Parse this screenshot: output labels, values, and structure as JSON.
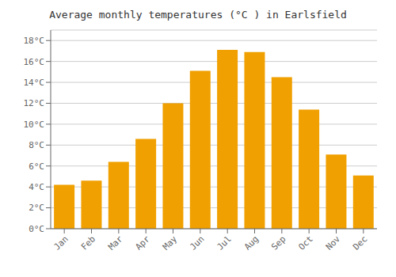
{
  "chart_data": {
    "type": "bar",
    "title": "Average monthly temperatures (°C ) in Earlsfield",
    "categories": [
      "Jan",
      "Feb",
      "Mar",
      "Apr",
      "May",
      "Jun",
      "Jul",
      "Aug",
      "Sep",
      "Oct",
      "Nov",
      "Dec"
    ],
    "values": [
      4.2,
      4.6,
      6.4,
      8.6,
      12.0,
      15.1,
      17.1,
      16.9,
      14.5,
      11.4,
      7.1,
      5.1
    ],
    "color": "#F0A000",
    "ylim": [
      0,
      19
    ],
    "yticks": [
      {
        "value": 0,
        "label": "0°C"
      },
      {
        "value": 2,
        "label": "2°C"
      },
      {
        "value": 4,
        "label": "4°C"
      },
      {
        "value": 6,
        "label": "6°C"
      },
      {
        "value": 8,
        "label": "8°C"
      },
      {
        "value": 10,
        "label": "10°C"
      },
      {
        "value": 12,
        "label": "12°C"
      },
      {
        "value": 14,
        "label": "14°C"
      },
      {
        "value": 16,
        "label": "16°C"
      },
      {
        "value": 18,
        "label": "18°C"
      }
    ],
    "grid": true
  }
}
